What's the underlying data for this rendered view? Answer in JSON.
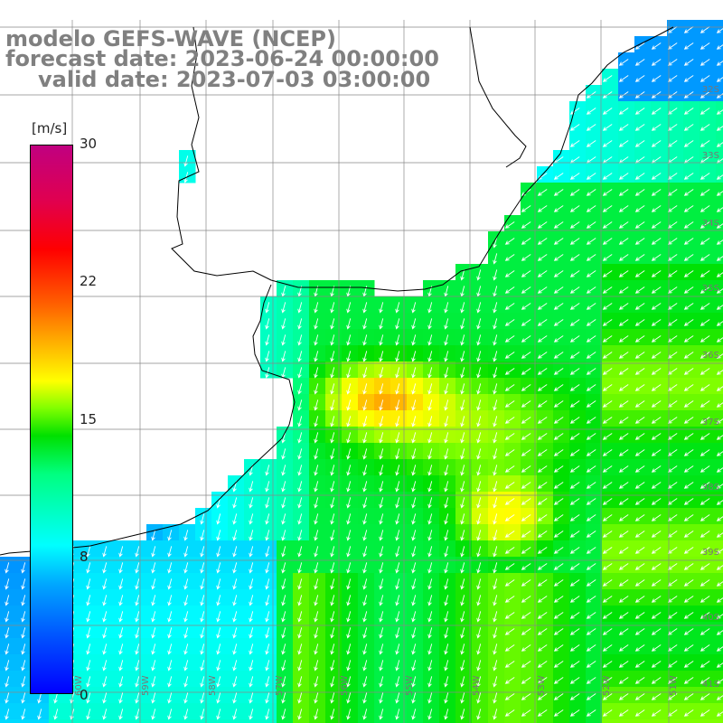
{
  "title": {
    "line1": "modelo GEFS-WAVE (NCEP)",
    "line2": "forecast date: 2023-06-24 00:00:00",
    "line3": "valid date: 2023-07-03 03:00:00"
  },
  "colorbar": {
    "unit": "[m/s]",
    "ticks": [
      "30",
      "22",
      "15",
      "8",
      "0"
    ],
    "colors": [
      "#0000ff",
      "#00a8ff",
      "#00ffff",
      "#00e000",
      "#ffff00",
      "#ff6000",
      "#ff0000",
      "#c00080"
    ]
  },
  "lat_labels": [
    "32S",
    "33S",
    "34S",
    "35S",
    "36S",
    "37S",
    "38S",
    "39S",
    "40S",
    "41S"
  ],
  "lon_labels": [
    "60W",
    "59W",
    "58W",
    "57W",
    "56W",
    "55W",
    "54W",
    "53W",
    "52W",
    "51W"
  ],
  "map": {
    "variable": "wind speed with direction arrows",
    "ocean_color_scale": "m/s",
    "land_color": "#ffffff",
    "arrow_color": "#ffffff"
  }
}
